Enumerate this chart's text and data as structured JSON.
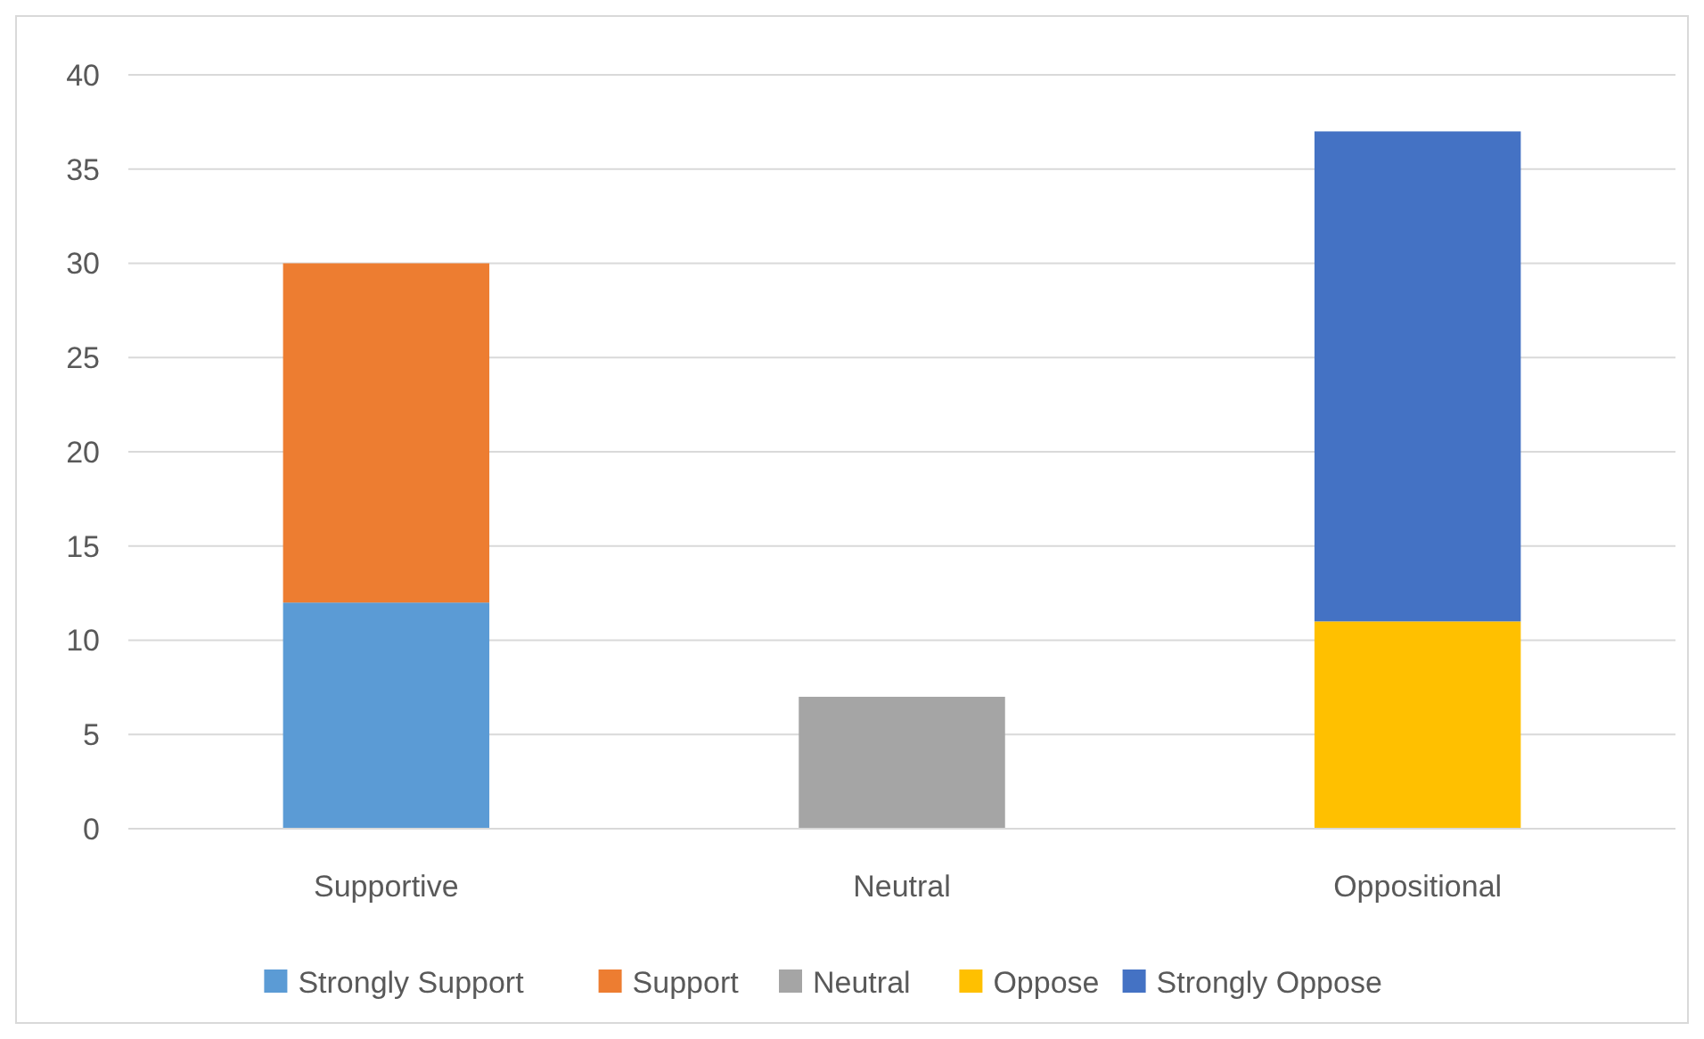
{
  "chart_data": {
    "type": "bar",
    "stacked": true,
    "categories": [
      "Supportive",
      "Neutral",
      "Oppositional"
    ],
    "series": [
      {
        "name": "Strongly Support",
        "color": "#5b9bd5",
        "values": [
          12,
          null,
          null
        ]
      },
      {
        "name": "Support",
        "color": "#ed7d31",
        "values": [
          18,
          null,
          null
        ]
      },
      {
        "name": "Neutral",
        "color": "#a5a5a5",
        "values": [
          null,
          7,
          null
        ]
      },
      {
        "name": "Oppose",
        "color": "#ffc000",
        "values": [
          null,
          null,
          11
        ]
      },
      {
        "name": "Strongly Oppose",
        "color": "#4472c4",
        "values": [
          null,
          null,
          26
        ]
      }
    ],
    "ylim": [
      0,
      40
    ],
    "yticks": [
      0,
      5,
      10,
      15,
      20,
      25,
      30,
      35,
      40
    ],
    "grid": "y",
    "legend": "bottom"
  }
}
